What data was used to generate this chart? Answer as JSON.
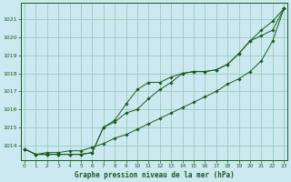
{
  "title": "Graphe pression niveau de la mer (hPa)",
  "bg_color": "#cce8f0",
  "grid_color": "#99ccbb",
  "line_color": "#1a5c1a",
  "xlim": [
    -0.3,
    23.3
  ],
  "ylim": [
    1013.2,
    1021.9
  ],
  "yticks": [
    1014,
    1015,
    1016,
    1017,
    1018,
    1019,
    1020,
    1021
  ],
  "xticks": [
    0,
    1,
    2,
    3,
    4,
    5,
    6,
    7,
    8,
    9,
    10,
    11,
    12,
    13,
    14,
    15,
    16,
    17,
    18,
    19,
    20,
    21,
    22,
    23
  ],
  "series1": [
    1013.8,
    1013.5,
    1013.6,
    1013.6,
    1013.7,
    1013.7,
    1013.9,
    1014.1,
    1014.4,
    1014.6,
    1014.9,
    1015.2,
    1015.5,
    1015.8,
    1016.1,
    1016.4,
    1016.7,
    1017.0,
    1017.4,
    1017.7,
    1018.1,
    1018.7,
    1019.8,
    1021.6
  ],
  "series2": [
    1013.8,
    1013.5,
    1013.5,
    1013.5,
    1013.5,
    1013.5,
    1013.6,
    1015.0,
    1015.3,
    1015.8,
    1016.0,
    1016.6,
    1017.1,
    1017.5,
    1018.0,
    1018.1,
    1018.1,
    1018.2,
    1018.5,
    1019.1,
    1019.8,
    1020.4,
    1020.9,
    1021.6
  ],
  "series3": [
    1013.8,
    1013.5,
    1013.5,
    1013.5,
    1013.5,
    1013.5,
    1013.6,
    1015.0,
    1015.4,
    1016.3,
    1017.1,
    1017.5,
    1017.5,
    1017.8,
    1018.0,
    1018.1,
    1018.1,
    1018.2,
    1018.5,
    1019.1,
    1019.8,
    1020.1,
    1020.4,
    1021.6
  ]
}
